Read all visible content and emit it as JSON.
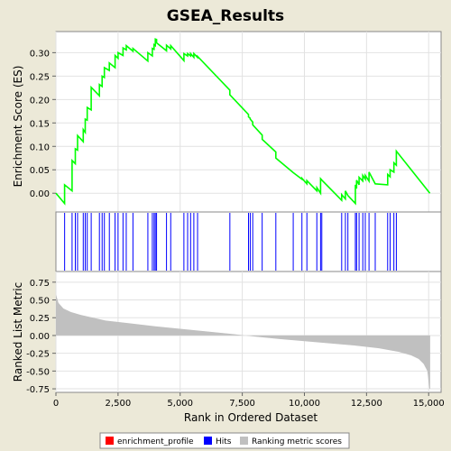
{
  "chart_data": {
    "type": "line",
    "title": "GSEA_Results",
    "xlabel": "Rank in Ordered Dataset",
    "x_range": [
      0,
      15500
    ],
    "x_ticks": [
      0,
      2500,
      5000,
      7500,
      10000,
      12500,
      15000
    ],
    "x_tick_labels": [
      "0",
      "2,500",
      "5,000",
      "7,500",
      "10,000",
      "12,500",
      "15,000"
    ],
    "panels": {
      "enrichment": {
        "ylabel": "Enrichment Score (ES)",
        "ylim": [
          -0.04,
          0.345
        ],
        "y_ticks": [
          0.0,
          0.05,
          0.1,
          0.15,
          0.2,
          0.25,
          0.3
        ],
        "y_tick_labels": [
          "0.00",
          "0.05",
          "0.10",
          "0.15",
          "0.20",
          "0.25",
          "0.30"
        ],
        "grid": true,
        "color": "#00ff00"
      },
      "hits": {
        "color": "#0000ff"
      },
      "metric": {
        "ylabel": "Ranked List Metric",
        "ylim": [
          -0.8,
          0.9
        ],
        "y_ticks": [
          0.75,
          0.5,
          0.25,
          0.0,
          -0.25,
          -0.5,
          -0.75
        ],
        "y_tick_labels": [
          "0.75",
          "0.50",
          "0.25",
          "0.00",
          "-0.25",
          "-0.50",
          "-0.75"
        ],
        "grid": true,
        "color": "#c0c0c0"
      }
    },
    "hit_positions": [
      350,
      650,
      780,
      870,
      1100,
      1180,
      1260,
      1420,
      1750,
      1860,
      1950,
      2150,
      2380,
      2500,
      2700,
      2830,
      3100,
      3700,
      3880,
      3950,
      4000,
      4050,
      4450,
      4620,
      5150,
      5300,
      5420,
      5550,
      5700,
      7000,
      7750,
      7820,
      7920,
      8300,
      8850,
      9550,
      9900,
      10100,
      10500,
      10650,
      10700,
      11500,
      11650,
      11750,
      12050,
      12100,
      12200,
      12350,
      12450,
      12600,
      12850,
      13350,
      13450,
      13600,
      13700
    ],
    "enrichment_profile": {
      "x": [
        0,
        350,
        350,
        650,
        650,
        780,
        780,
        870,
        870,
        1100,
        1100,
        1180,
        1180,
        1260,
        1260,
        1420,
        1420,
        1750,
        1750,
        1860,
        1860,
        1950,
        1950,
        2150,
        2150,
        2380,
        2380,
        2500,
        2500,
        2700,
        2700,
        2830,
        2830,
        3100,
        3100,
        3700,
        3700,
        3880,
        3880,
        3950,
        3950,
        4000,
        4000,
        4050,
        4050,
        4450,
        4450,
        4620,
        4620,
        5150,
        5150,
        5300,
        5300,
        5420,
        5420,
        5550,
        5550,
        5700,
        5700,
        7000,
        7000,
        7750,
        7750,
        7820,
        7820,
        7920,
        7920,
        8300,
        8300,
        8850,
        8850,
        9550,
        9550,
        9900,
        9900,
        10100,
        10100,
        10500,
        10500,
        10650,
        10650,
        10700,
        10700,
        11500,
        11500,
        11650,
        11650,
        11750,
        11750,
        12050,
        12050,
        12100,
        12100,
        12200,
        12200,
        12350,
        12350,
        12450,
        12450,
        12600,
        12600,
        12850,
        12850,
        13350,
        13350,
        13450,
        13450,
        13600,
        13600,
        13700,
        13700,
        15050
      ],
      "y": [
        0.0,
        -0.022,
        0.018,
        0.005,
        0.07,
        0.063,
        0.095,
        0.092,
        0.123,
        0.11,
        0.136,
        0.13,
        0.158,
        0.156,
        0.183,
        0.178,
        0.226,
        0.208,
        0.232,
        0.228,
        0.25,
        0.247,
        0.268,
        0.262,
        0.278,
        0.268,
        0.294,
        0.288,
        0.3,
        0.294,
        0.31,
        0.306,
        0.315,
        0.303,
        0.309,
        0.282,
        0.3,
        0.293,
        0.309,
        0.307,
        0.317,
        0.315,
        0.329,
        0.328,
        0.321,
        0.304,
        0.316,
        0.308,
        0.315,
        0.283,
        0.298,
        0.293,
        0.298,
        0.293,
        0.298,
        0.29,
        0.298,
        0.29,
        0.292,
        0.22,
        0.21,
        0.168,
        0.163,
        0.16,
        0.158,
        0.152,
        0.146,
        0.124,
        0.115,
        0.088,
        0.075,
        0.044,
        0.044,
        0.03,
        0.032,
        0.02,
        0.027,
        0.005,
        0.012,
        0.0,
        0.031,
        0.028,
        0.028,
        -0.015,
        -0.003,
        -0.012,
        0.005,
        -0.005,
        -0.005,
        -0.022,
        0.018,
        0.01,
        0.028,
        0.018,
        0.034,
        0.026,
        0.038,
        0.03,
        0.038,
        0.026,
        0.045,
        0.02,
        0.02,
        0.018,
        0.04,
        0.035,
        0.05,
        0.045,
        0.065,
        0.06,
        0.09,
        0.0
      ]
    },
    "metric_curve": {
      "x": [
        0,
        100,
        300,
        600,
        1000,
        1500,
        2000,
        3000,
        4000,
        5000,
        6000,
        7000,
        7500,
        8000,
        9000,
        10000,
        11000,
        12000,
        13000,
        13800,
        14300,
        14600,
        14800,
        14950,
        15030,
        15060
      ],
      "y": [
        0.58,
        0.46,
        0.38,
        0.33,
        0.29,
        0.25,
        0.21,
        0.17,
        0.13,
        0.095,
        0.06,
        0.025,
        0.005,
        -0.015,
        -0.05,
        -0.08,
        -0.11,
        -0.14,
        -0.18,
        -0.23,
        -0.28,
        -0.33,
        -0.4,
        -0.5,
        -0.75,
        -0.75
      ]
    },
    "legend": [
      {
        "label": "enrichment_profile",
        "color": "#ff0000"
      },
      {
        "label": "Hits",
        "color": "#0000ff"
      },
      {
        "label": "Ranking metric scores",
        "color": "#c0c0c0"
      }
    ],
    "legend_position": "bottom"
  }
}
